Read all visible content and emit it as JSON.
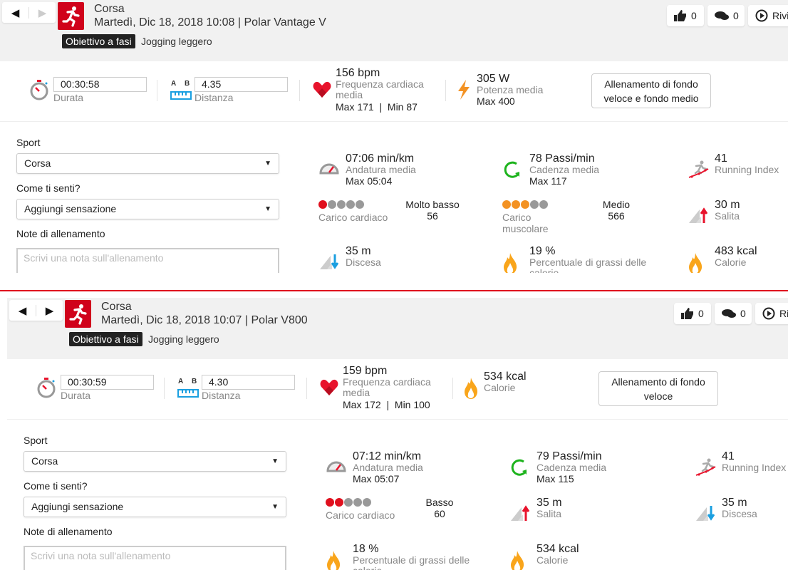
{
  "colors": {
    "brand": "#d0021b",
    "heart": "#e8132c",
    "cadence": "#1db31d",
    "load_cardio": "#e0101e",
    "load_muscle": "#f39223",
    "dot_off": "#999999",
    "descent": "#1a9fe0",
    "flame": "#f9a51b",
    "divider": "#e0101e"
  },
  "panels": [
    {
      "nav": {
        "prev_icon": "triangle-left-icon",
        "next_icon": "triangle-right-icon",
        "next_enabled": false
      },
      "sport_icon": "running-person-icon",
      "title": "Corsa",
      "subtitle": "Martedì, Dic 18, 2018 10:08 | Polar Vantage V",
      "badge": "Obiettivo a fasi",
      "target": "Jogging leggero",
      "buttons": {
        "likes": "0",
        "comments": "0",
        "relive": "Rivi"
      },
      "summary": {
        "duration": {
          "value": "00:30:58",
          "label": "Durata"
        },
        "distance": {
          "ab": [
            "A",
            "B"
          ],
          "value": "4.35",
          "label": "Distanza"
        },
        "heart_rate": {
          "value": "156 bpm",
          "label": "Frequenza cardiaca media",
          "max": "Max 171",
          "min": "Min 87",
          "sep": "|"
        },
        "extra": {
          "icon": "lightning-icon",
          "value": "305 W",
          "label": "Potenza media",
          "sub": "Max 400"
        },
        "zone_button": "Allenamento di fondo veloce e fondo medio"
      },
      "form": {
        "sport_label": "Sport",
        "sport_value": "Corsa",
        "feeling_label": "Come ti senti?",
        "feeling_value": "Aggiungi sensazione",
        "notes_label": "Note di allenamento",
        "notes_placeholder": "Scrivi una nota sull'allenamento"
      },
      "metrics": [
        {
          "type": "stat",
          "icon": "speedometer-icon",
          "value": "07:06 min/km",
          "label": "Andatura media",
          "sub": "Max 05:04"
        },
        {
          "type": "stat",
          "icon": "cadence-icon",
          "value": "78 Passi/min",
          "label": "Cadenza media",
          "sub": "Max 117"
        },
        {
          "type": "stat",
          "icon": "running-index-icon",
          "value": "41",
          "label": "Running Index"
        },
        {
          "type": "load",
          "kind": "cardio",
          "filled": 1,
          "total": 5,
          "label": "Carico cardiaco",
          "level": "Molto basso",
          "value": "56"
        },
        {
          "type": "load",
          "kind": "muscle",
          "filled": 3,
          "total": 5,
          "label": "Carico muscolare",
          "level": "Medio",
          "value": "566"
        },
        {
          "type": "stat",
          "icon": "ascent-icon",
          "value": "30 m",
          "label": "Salita"
        },
        {
          "type": "stat",
          "icon": "descent-icon",
          "value": "35 m",
          "label": "Discesa"
        },
        {
          "type": "stat",
          "icon": "flame-icon",
          "value": "19 %",
          "label": "Percentuale di grassi delle calorie"
        },
        {
          "type": "stat",
          "icon": "flame-icon",
          "value": "483 kcal",
          "label": "Calorie"
        }
      ]
    },
    {
      "nav": {
        "prev_icon": "triangle-left-icon",
        "next_icon": "triangle-right-icon",
        "next_enabled": true
      },
      "sport_icon": "running-person-icon",
      "title": "Corsa",
      "subtitle": "Martedì, Dic 18, 2018 10:07 | Polar V800",
      "badge": "Obiettivo a fasi",
      "target": "Jogging leggero",
      "buttons": {
        "likes": "0",
        "comments": "0",
        "relive": "Rivi"
      },
      "summary": {
        "duration": {
          "value": "00:30:59",
          "label": "Durata"
        },
        "distance": {
          "ab": [
            "A",
            "B"
          ],
          "value": "4.30",
          "label": "Distanza"
        },
        "heart_rate": {
          "value": "159 bpm",
          "label": "Frequenza cardiaca media",
          "max": "Max 172",
          "min": "Min 100",
          "sep": "|"
        },
        "extra": {
          "icon": "flame-icon",
          "value": "534 kcal",
          "label": "Calorie"
        },
        "zone_button": "Allenamento di fondo veloce"
      },
      "form": {
        "sport_label": "Sport",
        "sport_value": "Corsa",
        "feeling_label": "Come ti senti?",
        "feeling_value": "Aggiungi sensazione",
        "notes_label": "Note di allenamento",
        "notes_placeholder": "Scrivi una nota sull'allenamento"
      },
      "metrics": [
        {
          "type": "stat",
          "icon": "speedometer-icon",
          "value": "07:12 min/km",
          "label": "Andatura media",
          "sub": "Max 05:07"
        },
        {
          "type": "stat",
          "icon": "cadence-icon",
          "value": "79 Passi/min",
          "label": "Cadenza media",
          "sub": "Max 115"
        },
        {
          "type": "stat",
          "icon": "running-index-icon",
          "value": "41",
          "label": "Running Index"
        },
        {
          "type": "load",
          "kind": "cardio",
          "filled": 2,
          "total": 5,
          "label": "Carico cardiaco",
          "level": "Basso",
          "value": "60"
        },
        {
          "type": "stat",
          "icon": "ascent-icon",
          "value": "35 m",
          "label": "Salita"
        },
        {
          "type": "stat",
          "icon": "descent-icon",
          "value": "35 m",
          "label": "Discesa"
        },
        {
          "type": "stat",
          "icon": "flame-icon",
          "value": "18 %",
          "label": "Percentuale di grassi delle calorie"
        },
        {
          "type": "stat",
          "icon": "flame-icon",
          "value": "534 kcal",
          "label": "Calorie"
        }
      ]
    }
  ]
}
